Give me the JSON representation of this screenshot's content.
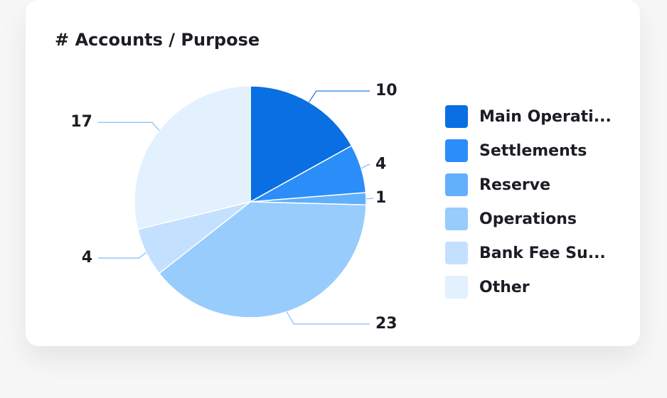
{
  "chart_data": {
    "type": "pie",
    "title": "# Accounts / Purpose",
    "categories": [
      "Main Operati...",
      "Settlements",
      "Reserve",
      "Operations",
      "Bank Fee Su...",
      "Other"
    ],
    "values": [
      10,
      4,
      1,
      23,
      4,
      17
    ],
    "colors": [
      "#0a6fe2",
      "#2b8df8",
      "#62affc",
      "#97ccfd",
      "#c3e1fe",
      "#e3f0fd"
    ]
  }
}
